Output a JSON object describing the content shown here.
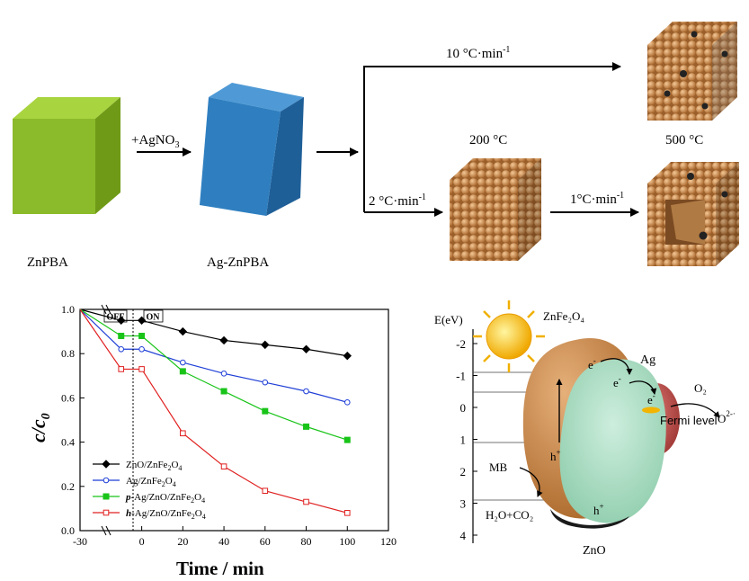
{
  "synthesis": {
    "zn_label": "ZnPBA",
    "reagent": "+AgNO",
    "reagent_sub": "3",
    "ag_label": "Ag-ZnPBA",
    "rate_top": "10 °C·min",
    "rate_top_sup": "-1",
    "temp_200": "200 °C",
    "rate_bottom": "2 °C·min",
    "rate_bottom_sup": "-1",
    "rate_final": "1°C·min",
    "rate_final_sup": "-1",
    "temp_500": "500 °C",
    "colors": {
      "zn_cube": "#8bbb2a",
      "ag_cube": "#2f7fc0",
      "sphere": "#c98a4e"
    }
  },
  "chart_data": {
    "type": "line",
    "xlabel": "Time / min",
    "ylabel": "c/c",
    "ylabel_sub": "0",
    "off_label": "OFF",
    "on_label": "ON",
    "xlim": [
      -30,
      120
    ],
    "ylim": [
      0.0,
      1.0
    ],
    "xticks": [
      "-30",
      "0",
      "20",
      "40",
      "60",
      "80",
      "100",
      "120"
    ],
    "yticks": [
      "0.0",
      "0.2",
      "0.4",
      "0.6",
      "0.8",
      "1.0"
    ],
    "series": [
      {
        "name": "ZnO/ZnFe2O4",
        "color": "#000000",
        "marker": "diamond-filled",
        "x": [
          -30,
          -10,
          0,
          20,
          40,
          60,
          80,
          100
        ],
        "y": [
          1.0,
          0.95,
          0.95,
          0.9,
          0.86,
          0.84,
          0.82,
          0.79
        ]
      },
      {
        "name": "Ag/ZnFe2O4",
        "color": "#1f3fd6",
        "marker": "circle-open",
        "x": [
          -30,
          -10,
          0,
          20,
          40,
          60,
          80,
          100
        ],
        "y": [
          1.0,
          0.82,
          0.82,
          0.76,
          0.71,
          0.67,
          0.63,
          0.58
        ]
      },
      {
        "name": "p-Ag/ZnO/ZnFe2O4",
        "color": "#19c419",
        "marker": "square-filled",
        "x": [
          -30,
          -10,
          0,
          20,
          40,
          60,
          80,
          100
        ],
        "y": [
          1.0,
          0.88,
          0.88,
          0.72,
          0.63,
          0.54,
          0.47,
          0.41
        ]
      },
      {
        "name": "h-Ag/ZnO/ZnFe2O4",
        "color": "#e02020",
        "marker": "square-open",
        "x": [
          -30,
          -10,
          0,
          20,
          40,
          60,
          80,
          100
        ],
        "y": [
          1.0,
          0.73,
          0.73,
          0.44,
          0.29,
          0.18,
          0.13,
          0.08
        ]
      }
    ],
    "legend_display": [
      {
        "prefix": "",
        "main": "ZnO/ZnFe",
        "sub1": "2",
        "mid": "O",
        "sub2": "4"
      },
      {
        "prefix": "",
        "main": "Ag/ZnFe",
        "sub1": "2",
        "mid": "O",
        "sub2": "4"
      },
      {
        "prefix": "p",
        "main": "-Ag/ZnO/ZnFe",
        "sub1": "2",
        "mid": "O",
        "sub2": "4"
      },
      {
        "prefix": "h",
        "main": "-Ag/ZnO/ZnFe",
        "sub1": "2",
        "mid": "O",
        "sub2": "4"
      }
    ]
  },
  "band": {
    "axis_label": "E(eV)",
    "ticks": [
      "-2",
      "-1",
      "0",
      "1",
      "2",
      "3",
      "4"
    ],
    "zfo_label": "ZnFe₂O₄",
    "ag_label": "Ag",
    "zno_label": "ZnO",
    "o2_label": "O₂",
    "o2_product": "O",
    "o2_product_sup": "2-·",
    "fermi_label": "Fermi level",
    "mb_label": "MB",
    "products_label": "H₂O+CO₂",
    "e_label": "e",
    "e_sup": "-",
    "h_label": "h",
    "h_sup": "+",
    "colors": {
      "zfo": "#c47f3e",
      "zno": "#a8dcc4",
      "ag": "#c2504e",
      "sun": "#f6c200"
    }
  }
}
